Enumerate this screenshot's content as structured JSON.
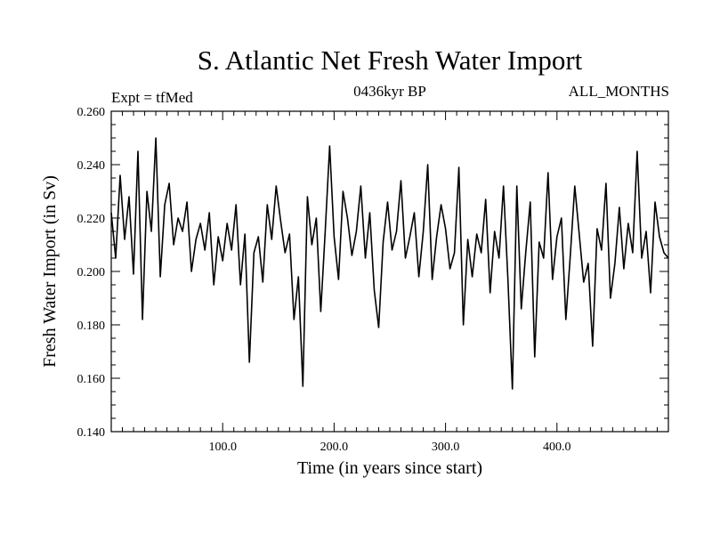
{
  "chart_data": {
    "type": "line",
    "title": "S. Atlantic Net Fresh Water Import",
    "subtitle_left": "Expt = tfMed",
    "subtitle_center": "0436kyr BP",
    "subtitle_right": "ALL_MONTHS",
    "xlabel": "Time (in years since start)",
    "ylabel": "Fresh Water Import (in Sv)",
    "xlim": [
      0,
      500
    ],
    "ylim": [
      0.14,
      0.26
    ],
    "x_ticks": [
      100,
      200,
      300,
      400
    ],
    "x_tick_labels": [
      "100.0",
      "200.0",
      "300.0",
      "400.0"
    ],
    "y_ticks": [
      0.14,
      0.16,
      0.18,
      0.2,
      0.22,
      0.24,
      0.26
    ],
    "y_tick_labels": [
      "0.140",
      "0.160",
      "0.180",
      "0.200",
      "0.220",
      "0.240",
      "0.260"
    ],
    "grid": false,
    "line_color": "#000000",
    "series": [
      {
        "x": [
          0,
          4,
          8,
          12,
          16,
          20,
          24,
          28,
          32,
          36,
          40,
          44,
          48,
          52,
          56,
          60,
          64,
          68,
          72,
          76,
          80,
          84,
          88,
          92,
          96,
          100,
          104,
          108,
          112,
          116,
          120,
          124,
          128,
          132,
          136,
          140,
          144,
          148,
          152,
          156,
          160,
          164,
          168,
          172,
          176,
          180,
          184,
          188,
          192,
          196,
          200,
          204,
          208,
          212,
          216,
          220,
          224,
          228,
          232,
          236,
          240,
          244,
          248,
          252,
          256,
          260,
          264,
          268,
          272,
          276,
          280,
          284,
          288,
          292,
          296,
          300,
          304,
          308,
          312,
          316,
          320,
          324,
          328,
          332,
          336,
          340,
          344,
          348,
          352,
          356,
          360,
          364,
          368,
          372,
          376,
          380,
          384,
          388,
          392,
          396,
          400,
          404,
          408,
          412,
          416,
          420,
          424,
          428,
          432,
          436,
          440,
          444,
          448,
          452,
          456,
          460,
          464,
          468,
          472,
          476,
          480,
          484,
          488,
          492,
          496,
          500
        ],
        "y": [
          0.222,
          0.205,
          0.236,
          0.212,
          0.228,
          0.199,
          0.245,
          0.182,
          0.23,
          0.215,
          0.25,
          0.198,
          0.225,
          0.233,
          0.21,
          0.22,
          0.215,
          0.226,
          0.2,
          0.212,
          0.218,
          0.208,
          0.222,
          0.195,
          0.213,
          0.204,
          0.218,
          0.208,
          0.225,
          0.195,
          0.214,
          0.166,
          0.207,
          0.213,
          0.196,
          0.225,
          0.212,
          0.232,
          0.219,
          0.207,
          0.214,
          0.182,
          0.198,
          0.157,
          0.228,
          0.21,
          0.22,
          0.185,
          0.215,
          0.247,
          0.213,
          0.197,
          0.23,
          0.22,
          0.206,
          0.215,
          0.232,
          0.205,
          0.222,
          0.193,
          0.179,
          0.211,
          0.226,
          0.208,
          0.215,
          0.234,
          0.205,
          0.213,
          0.222,
          0.198,
          0.215,
          0.24,
          0.197,
          0.213,
          0.225,
          0.216,
          0.201,
          0.207,
          0.239,
          0.18,
          0.212,
          0.198,
          0.214,
          0.207,
          0.227,
          0.192,
          0.215,
          0.205,
          0.232,
          0.197,
          0.156,
          0.232,
          0.186,
          0.207,
          0.226,
          0.168,
          0.211,
          0.205,
          0.237,
          0.197,
          0.213,
          0.22,
          0.182,
          0.206,
          0.232,
          0.214,
          0.196,
          0.203,
          0.172,
          0.216,
          0.208,
          0.233,
          0.19,
          0.203,
          0.224,
          0.201,
          0.218,
          0.207,
          0.245,
          0.205,
          0.215,
          0.192,
          0.226,
          0.213,
          0.207,
          0.205
        ]
      }
    ]
  }
}
